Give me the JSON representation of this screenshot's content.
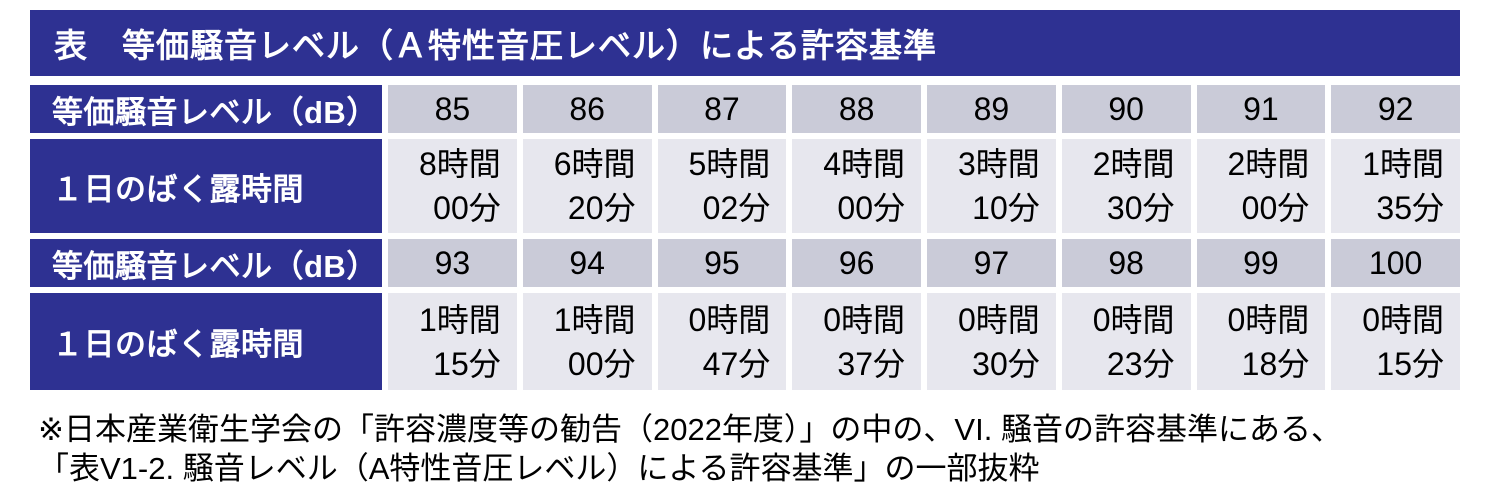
{
  "colors": {
    "header_background": "#2e3192",
    "header_text": "#ffffff",
    "db_row_cell": "#cacbd8",
    "time_row_cell": "#e7e7ee",
    "body_text": "#000000",
    "page_background": "#ffffff"
  },
  "title": "表　等価騒音レベル（Ａ特性音圧レベル）による許容基準",
  "table": {
    "row_header_level": "等価騒音レベル（dB）",
    "row_header_exposure": "１日のばく露時間",
    "block1": {
      "levels": [
        "85",
        "86",
        "87",
        "88",
        "89",
        "90",
        "91",
        "92"
      ],
      "times": [
        {
          "h": "8時間",
          "m": "00分"
        },
        {
          "h": "6時間",
          "m": "20分"
        },
        {
          "h": "5時間",
          "m": "02分"
        },
        {
          "h": "4時間",
          "m": "00分"
        },
        {
          "h": "3時間",
          "m": "10分"
        },
        {
          "h": "2時間",
          "m": "30分"
        },
        {
          "h": "2時間",
          "m": "00分"
        },
        {
          "h": "1時間",
          "m": "35分"
        }
      ]
    },
    "block2": {
      "levels": [
        "93",
        "94",
        "95",
        "96",
        "97",
        "98",
        "99",
        "100"
      ],
      "times": [
        {
          "h": "1時間",
          "m": "15分"
        },
        {
          "h": "1時間",
          "m": "00分"
        },
        {
          "h": "0時間",
          "m": "47分"
        },
        {
          "h": "0時間",
          "m": "37分"
        },
        {
          "h": "0時間",
          "m": "30分"
        },
        {
          "h": "0時間",
          "m": "23分"
        },
        {
          "h": "0時間",
          "m": "18分"
        },
        {
          "h": "0時間",
          "m": "15分"
        }
      ]
    }
  },
  "footnote": {
    "line1": "※日本産業衛生学会の「許容濃度等の勧告（2022年度）」の中の、VI. 騒音の許容基準にある、",
    "line2": "「表V1-2. 騒音レベル（A特性音圧レベル）による許容基準」の一部抜粋"
  }
}
